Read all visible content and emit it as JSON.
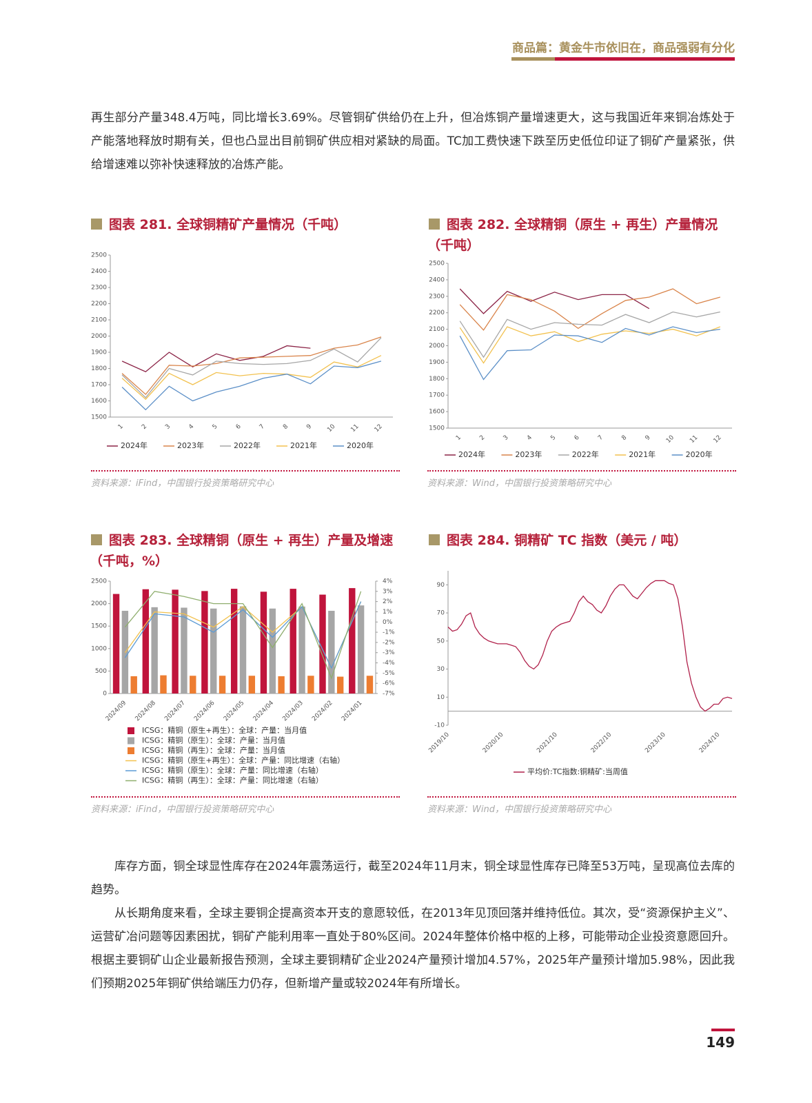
{
  "header": {
    "title": "商品篇：黄金牛市依旧在，商品强弱有分化"
  },
  "paragraphs": [
    "再生部分产量348.4万吨，同比增长3.69%。尽管铜矿供给仍在上升，但冶炼铜产量增速更大，这与我国近年来铜冶炼处于产能落地释放时期有关，但也凸显出目前铜矿供应相对紧缺的局面。TC加工费快速下跌至历史低位印证了铜矿产量紧张，供给增速难以弥补快速释放的冶炼产能。",
    "库存方面，铜全球显性库存在2024年震荡运行，截至2024年11月末，铜全球显性库存已降至53万吨，呈现高位去库的趋势。",
    "从长期角度来看，全球主要铜企提高资本开支的意愿较低，在2013年见顶回落并维持低位。其次，受“资源保护主义”、运营矿冶问题等因素困扰，铜矿产能利用率一直处于80%区间。2024年整体价格中枢的上移，可能带动企业投资意愿回升。根据主要铜矿山企业最新报告预测，全球主要铜精矿企业2024产量预计增加4.57%，2025年产量预计增加5.98%，因此我们预期2025年铜矿供给端压力仍存，但新增产量或较2024年有所增长。"
  ],
  "chart_data": [
    {
      "type": "line",
      "title": "图表 281. 全球铜精矿产量情况（千吨）",
      "source": "资料来源：iFind，中国银行投资策略研究中心",
      "categories": [
        "1",
        "2",
        "3",
        "4",
        "5",
        "6",
        "7",
        "8",
        "9",
        "10",
        "11",
        "12"
      ],
      "ylim": [
        1500,
        2500
      ],
      "yticks": [
        1500,
        1600,
        1700,
        1800,
        1900,
        2000,
        2100,
        2200,
        2300,
        2400,
        2500
      ],
      "series": [
        {
          "name": "2024年",
          "color": "#8b2346",
          "values": [
            1845,
            1780,
            1900,
            1810,
            1890,
            1850,
            1875,
            1940,
            1925,
            null,
            null,
            null
          ]
        },
        {
          "name": "2023年",
          "color": "#d9844a",
          "values": [
            1770,
            1640,
            1820,
            1815,
            1830,
            1865,
            1870,
            1875,
            1880,
            1925,
            1945,
            1995
          ]
        },
        {
          "name": "2022年",
          "color": "#a6a6a6",
          "values": [
            1760,
            1620,
            1800,
            1760,
            1845,
            1830,
            1825,
            1830,
            1850,
            1920,
            1840,
            1990
          ]
        },
        {
          "name": "2021年",
          "color": "#f2c14e",
          "values": [
            1740,
            1610,
            1770,
            1700,
            1775,
            1755,
            1770,
            1765,
            1745,
            1840,
            1810,
            1880
          ]
        },
        {
          "name": "2020年",
          "color": "#5b8fc7",
          "values": [
            1685,
            1545,
            1690,
            1600,
            1655,
            1690,
            1740,
            1765,
            1705,
            1815,
            1805,
            1845
          ]
        }
      ]
    },
    {
      "type": "line",
      "title": "图表 282. 全球精铜（原生 + 再生）产量情况（千吨）",
      "source": "资料来源：Wind，中国银行投资策略研究中心",
      "categories": [
        "1",
        "2",
        "3",
        "4",
        "5",
        "6",
        "7",
        "8",
        "9",
        "10",
        "11",
        "12"
      ],
      "ylim": [
        1500,
        2500
      ],
      "yticks": [
        1500,
        1600,
        1700,
        1800,
        1900,
        2000,
        2100,
        2200,
        2300,
        2400,
        2500
      ],
      "series": [
        {
          "name": "2024年",
          "color": "#8b2346",
          "values": [
            2345,
            2195,
            2330,
            2270,
            2325,
            2280,
            2310,
            2310,
            2225,
            null,
            null,
            null
          ]
        },
        {
          "name": "2023年",
          "color": "#d9844a",
          "values": [
            2250,
            2095,
            2310,
            2280,
            2210,
            2105,
            2195,
            2275,
            2295,
            2345,
            2255,
            2295
          ]
        },
        {
          "name": "2022年",
          "color": "#a6a6a6",
          "values": [
            2150,
            1930,
            2160,
            2100,
            2140,
            2130,
            2125,
            2190,
            2140,
            2205,
            2175,
            2205
          ]
        },
        {
          "name": "2021年",
          "color": "#f2c14e",
          "values": [
            2110,
            1895,
            2115,
            2060,
            2085,
            2025,
            2070,
            2090,
            2075,
            2100,
            2060,
            2115
          ]
        },
        {
          "name": "2020年",
          "color": "#5b8fc7",
          "values": [
            2060,
            1795,
            1970,
            1975,
            2065,
            2060,
            2020,
            2105,
            2065,
            2115,
            2080,
            2100
          ]
        }
      ]
    },
    {
      "type": "combo",
      "title": "图表 283. 全球精铜（原生 + 再生）产量及增速（千吨，%）",
      "source": "资料来源：iFind，中国银行投资策略研究中心",
      "categories": [
        "2024/09",
        "2024/08",
        "2024/07",
        "2024/06",
        "2024/05",
        "2024/04",
        "2024/03",
        "2024/02",
        "2024/01"
      ],
      "ylim": [
        0,
        2500
      ],
      "yticks": [
        0,
        500,
        1000,
        1500,
        2000,
        2500
      ],
      "y2lim": [
        -7,
        4
      ],
      "y2ticks": [
        {
          "value": -7,
          "label": "-7%"
        },
        {
          "value": -6,
          "label": "-6%"
        },
        {
          "value": -5,
          "label": "-5%"
        },
        {
          "value": -4,
          "label": "-4%"
        },
        {
          "value": -3,
          "label": "-3%"
        },
        {
          "value": -2,
          "label": "-2%"
        },
        {
          "value": -1,
          "label": "-1%"
        },
        {
          "value": 0,
          "label": "0%"
        },
        {
          "value": 1,
          "label": "1%"
        },
        {
          "value": 2,
          "label": "2%"
        },
        {
          "value": 3,
          "label": "3%"
        },
        {
          "value": 4,
          "label": "4%"
        }
      ],
      "series": [
        {
          "name": "ICSG：精铜（原生+再生）：全球：产量：当月值",
          "color": "#c0143c",
          "values": [
            2215,
            2320,
            2310,
            2280,
            2330,
            2265,
            2330,
            2200,
            2345
          ]
        },
        {
          "name": "ICSG：精铜（原生）：全球：产量：当月值",
          "color": "#a6a6a6",
          "values": [
            1840,
            1920,
            1910,
            1890,
            1940,
            1890,
            1935,
            1840,
            1960
          ]
        },
        {
          "name": "ICSG：精铜（再生）：全球：产量：当月值",
          "color": "#ed7d31",
          "values": [
            385,
            405,
            395,
            395,
            395,
            385,
            395,
            375,
            395
          ]
        },
        {
          "name": "ICSG：精铜（原生+再生）：全球：产量：同比增速（右轴）",
          "color": "#f2c14e",
          "axis": "y2",
          "values": [
            -3,
            1,
            0.8,
            -0.5,
            1.5,
            -1,
            1.5,
            -4.5,
            2
          ]
        },
        {
          "name": "ICSG：精铜（原生）：全球：产量：同比增速（右轴）",
          "color": "#5b9bd5",
          "axis": "y2",
          "values": [
            -3.5,
            0.8,
            0.5,
            -1,
            1.2,
            -1.5,
            1.5,
            -4.5,
            2
          ]
        },
        {
          "name": "ICSG：精铜（再生）：全球：产量：同比增速（右轴）",
          "color": "#8fae6e",
          "axis": "y2",
          "values": [
            -0.5,
            3,
            2.5,
            1.8,
            1.8,
            -2.5,
            1.8,
            -5.5,
            3
          ]
        }
      ]
    },
    {
      "type": "line",
      "title": "图表 284. 铜精矿 TC 指数（美元 / 吨）",
      "source": "资料来源：Wind，中国银行投资策略研究中心",
      "x": [
        "2019/10",
        "2019/11",
        "2019/12",
        "2020/01",
        "2020/02",
        "2020/03",
        "2020/04",
        "2020/05",
        "2020/06",
        "2020/07",
        "2020/08",
        "2020/09",
        "2020/10",
        "2020/11",
        "2020/12",
        "2021/01",
        "2021/02",
        "2021/03",
        "2021/04",
        "2021/05",
        "2021/06",
        "2021/07",
        "2021/08",
        "2021/09",
        "2021/10",
        "2021/11",
        "2021/12",
        "2022/01",
        "2022/02",
        "2022/03",
        "2022/04",
        "2022/05",
        "2022/06",
        "2022/07",
        "2022/08",
        "2022/09",
        "2022/10",
        "2022/11",
        "2022/12",
        "2023/01",
        "2023/02",
        "2023/03",
        "2023/04",
        "2023/05",
        "2023/06",
        "2023/07",
        "2023/08",
        "2023/09",
        "2023/10",
        "2023/11",
        "2023/12",
        "2024/01",
        "2024/02",
        "2024/03",
        "2024/04",
        "2024/05",
        "2024/06",
        "2024/07",
        "2024/08",
        "2024/09",
        "2024/10",
        "2024/11",
        "2024/12",
        "2025/01"
      ],
      "xticks": [
        "2019/10",
        "2020/10",
        "2021/10",
        "2022/10",
        "2023/10",
        "2024/10"
      ],
      "ylim": [
        -10,
        100
      ],
      "yticks": [
        -10,
        10,
        30,
        50,
        70,
        90
      ],
      "series": [
        {
          "name": "平均价:TC指数:铜精矿:当周值",
          "color": "#b0204a",
          "values": [
            60,
            57,
            58,
            62,
            68,
            70,
            60,
            55,
            52,
            50,
            49,
            48,
            48,
            48,
            47,
            46,
            42,
            36,
            32,
            30,
            33,
            40,
            50,
            57,
            60,
            62,
            63,
            64,
            70,
            78,
            82,
            78,
            76,
            72,
            70,
            75,
            82,
            87,
            90,
            90,
            86,
            82,
            80,
            84,
            88,
            91,
            93,
            93,
            93,
            91,
            90,
            80,
            60,
            35,
            20,
            10,
            3,
            0,
            2,
            5,
            5,
            9,
            10,
            9
          ]
        }
      ]
    }
  ],
  "footer": {
    "page": "149"
  }
}
